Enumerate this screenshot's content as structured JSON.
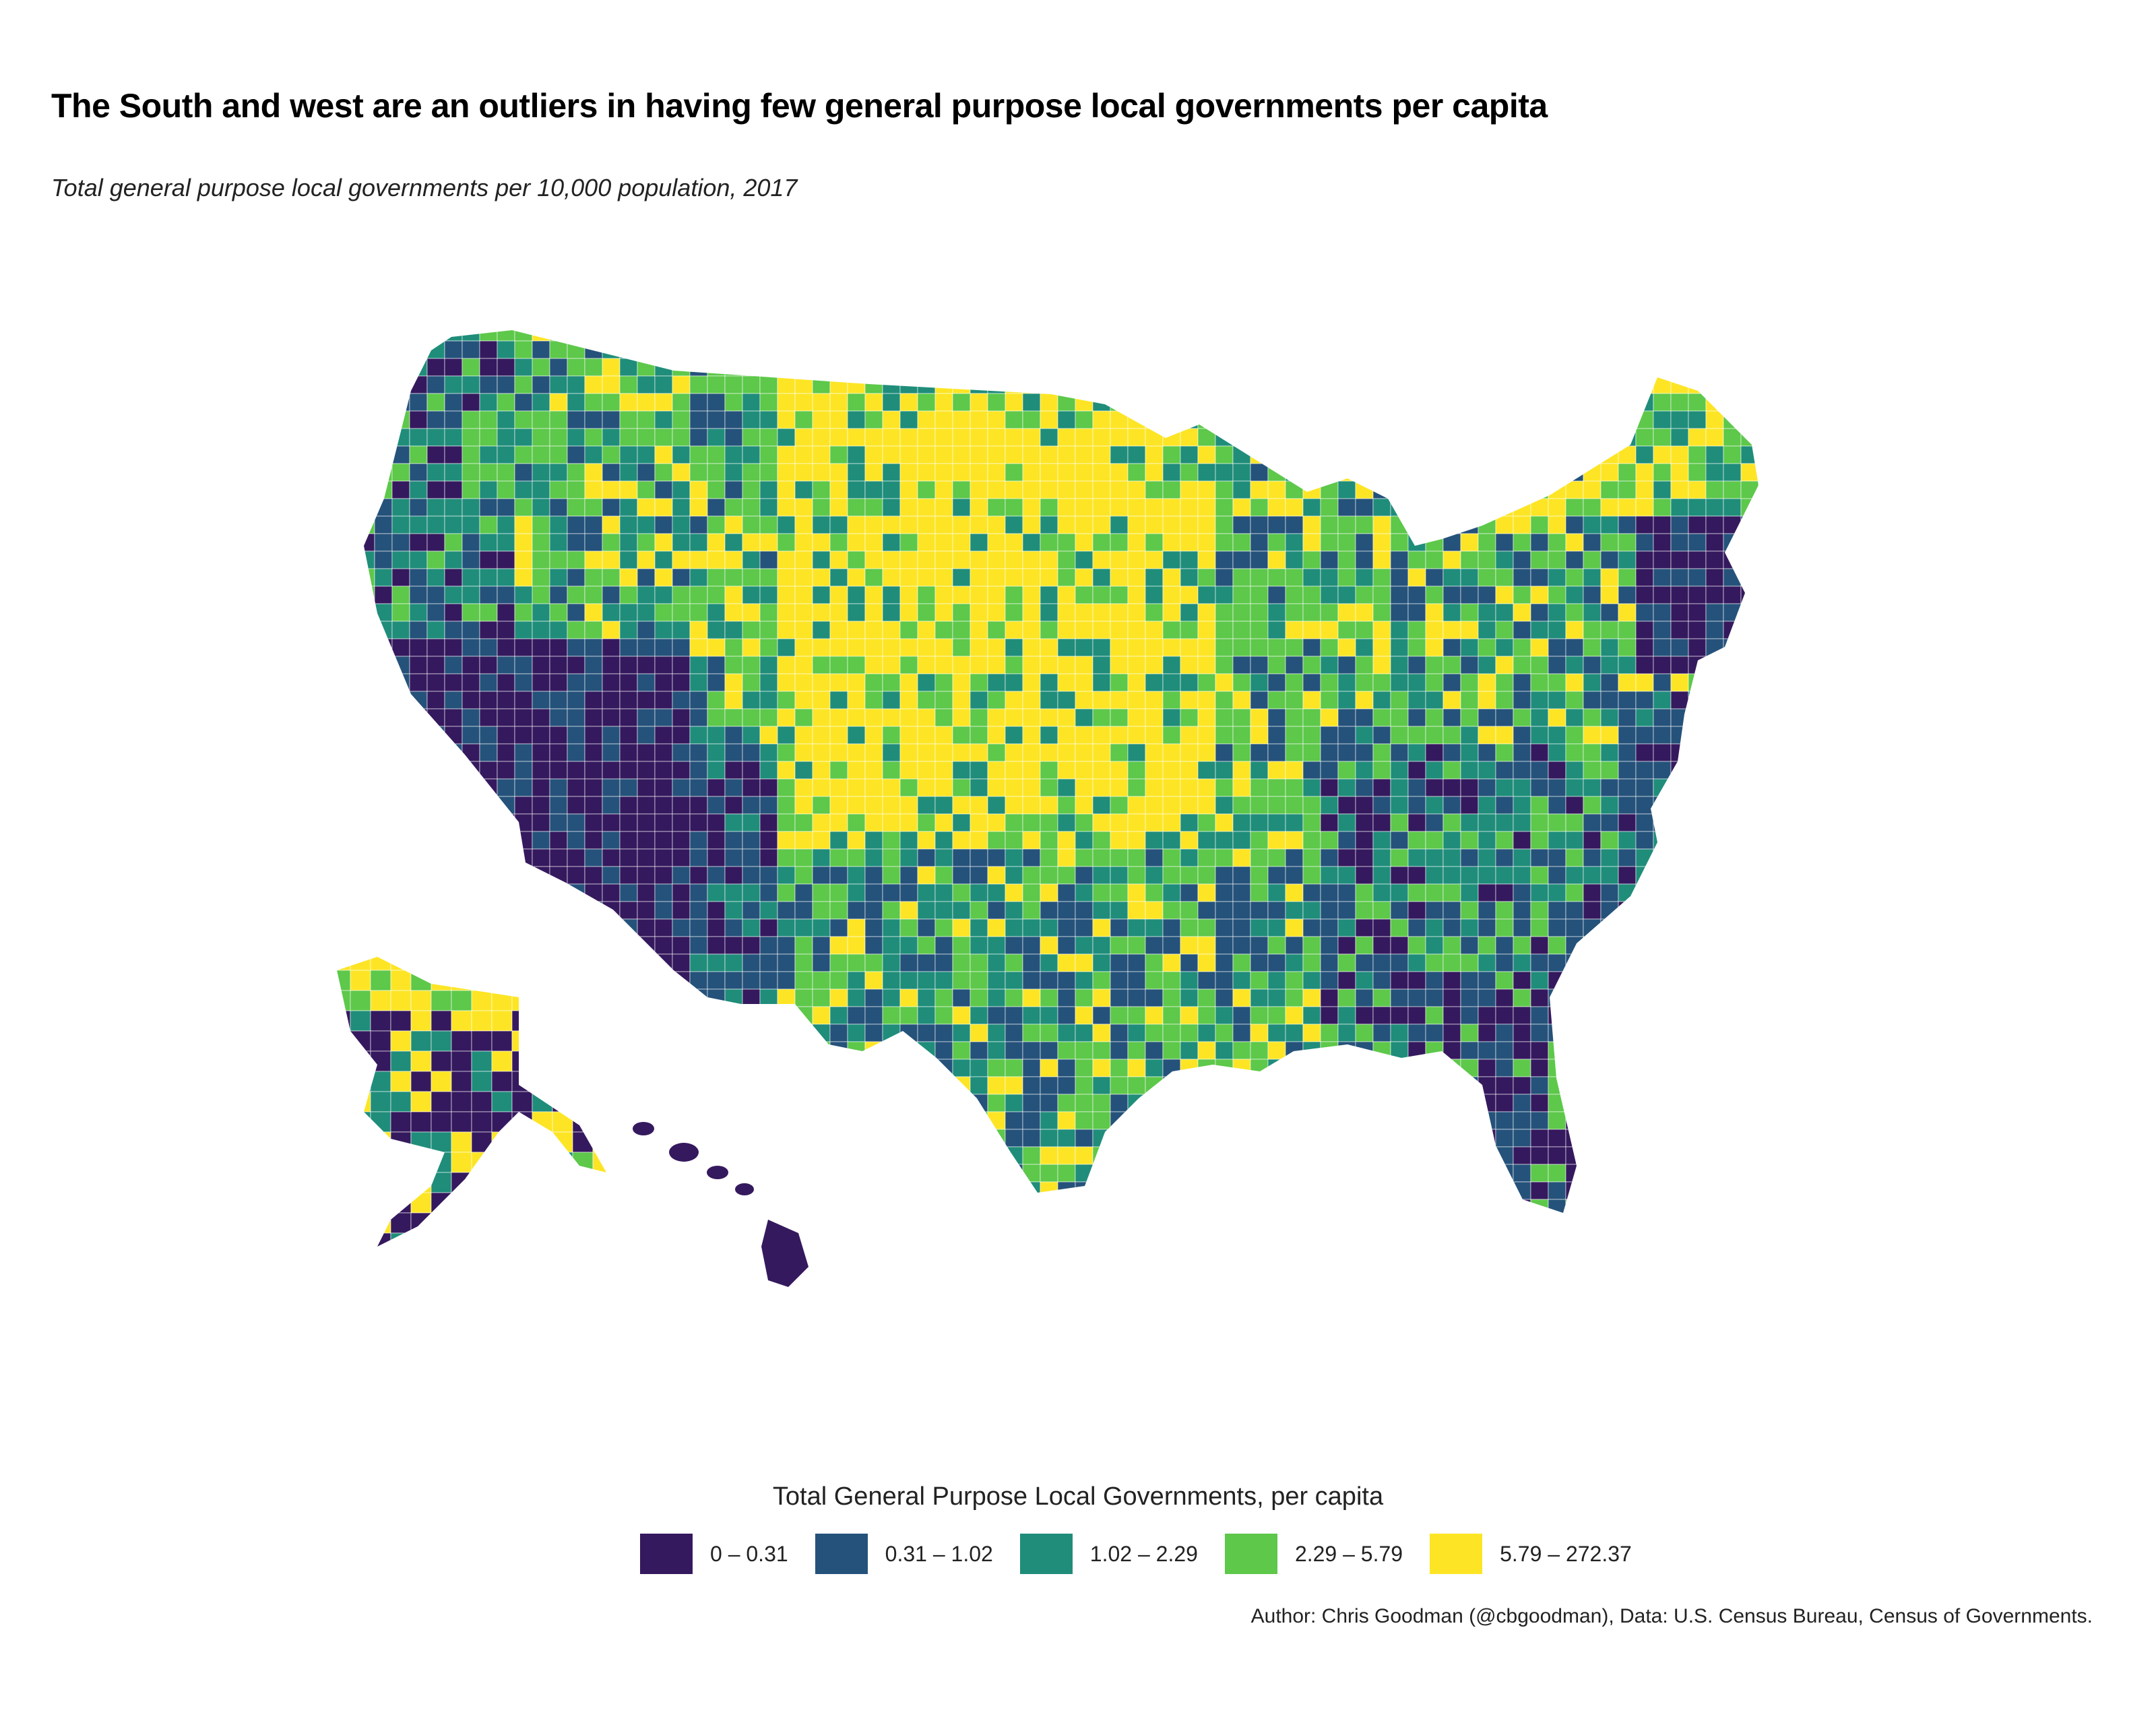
{
  "title": "The South and west are an outliers in having few general purpose local governments per capita",
  "subtitle": "Total general purpose local governments per 10,000 population, 2017",
  "legend": {
    "title": "Total General Purpose Local Governments, per capita",
    "items": [
      {
        "label": "0 – 0.31",
        "color": "#35195E"
      },
      {
        "label": "0.31 – 1.02",
        "color": "#25527A"
      },
      {
        "label": "1.02 – 2.29",
        "color": "#1F8D7A"
      },
      {
        "label": "2.29 – 5.79",
        "color": "#5DC84A"
      },
      {
        "label": "5.79 – 272.37",
        "color": "#FDE525"
      }
    ]
  },
  "caption": "Author: Chris Goodman (@cbgoodman), Data: U.S. Census Bureau, Census of Governments.",
  "map": {
    "type": "choropleth",
    "geography": "US counties"
  }
}
